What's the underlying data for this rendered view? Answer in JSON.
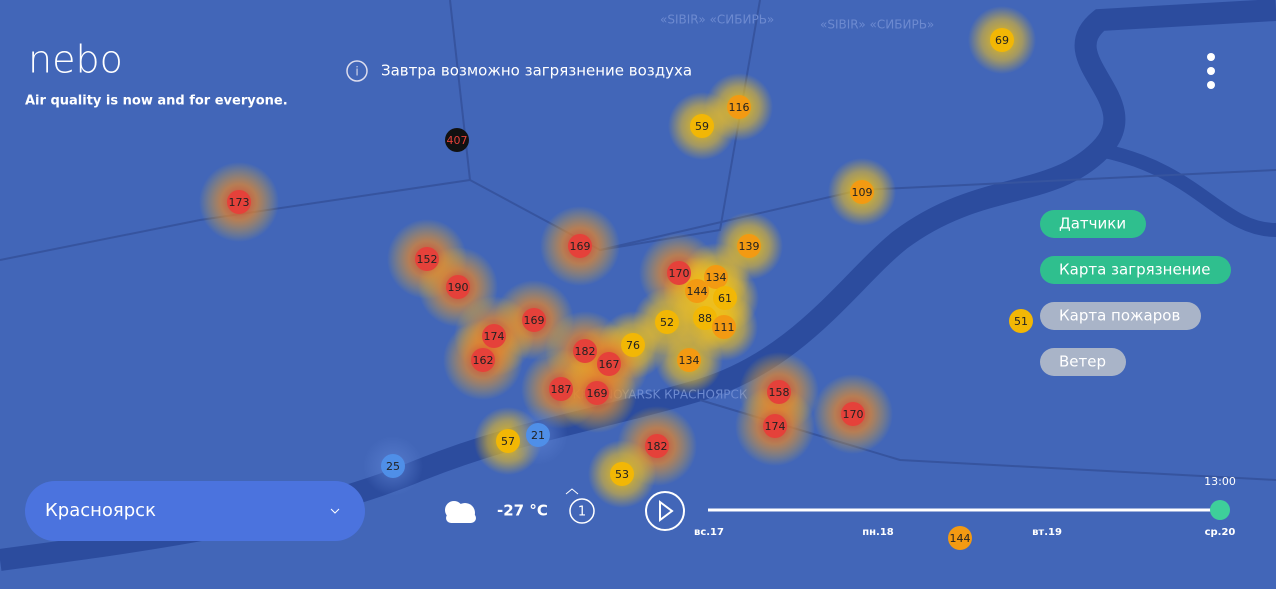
{
  "header": {
    "logo": "nebo",
    "tagline": "Air quality is now and for everyone.",
    "notice": "Завтра возможно загрязнение воздуха"
  },
  "map": {
    "place_labels": [
      "«SIBIR» «СИБИРЬ»",
      "«SIBIR» «СИБИРЬ»",
      "KRASNOYARSK КРАСНОЯРСК"
    ],
    "sensors": [
      407,
      173,
      116,
      59,
      69,
      109,
      169,
      139,
      152,
      190,
      170,
      134,
      144,
      61,
      52,
      88,
      111,
      169,
      174,
      162,
      182,
      76,
      167,
      134,
      187,
      169,
      158,
      174,
      170,
      57,
      21,
      182,
      25,
      53,
      51,
      144
    ]
  },
  "layers": [
    "Датчики",
    "Карта загрязнение",
    "Карта пожаров",
    "Ветер"
  ],
  "footer": {
    "city": "Красноярск",
    "temperature": "-27 °C",
    "wind_count": "1",
    "time": "13:00",
    "days": [
      "вс.17",
      "пн.18",
      "вт.19",
      "ср.20"
    ]
  }
}
